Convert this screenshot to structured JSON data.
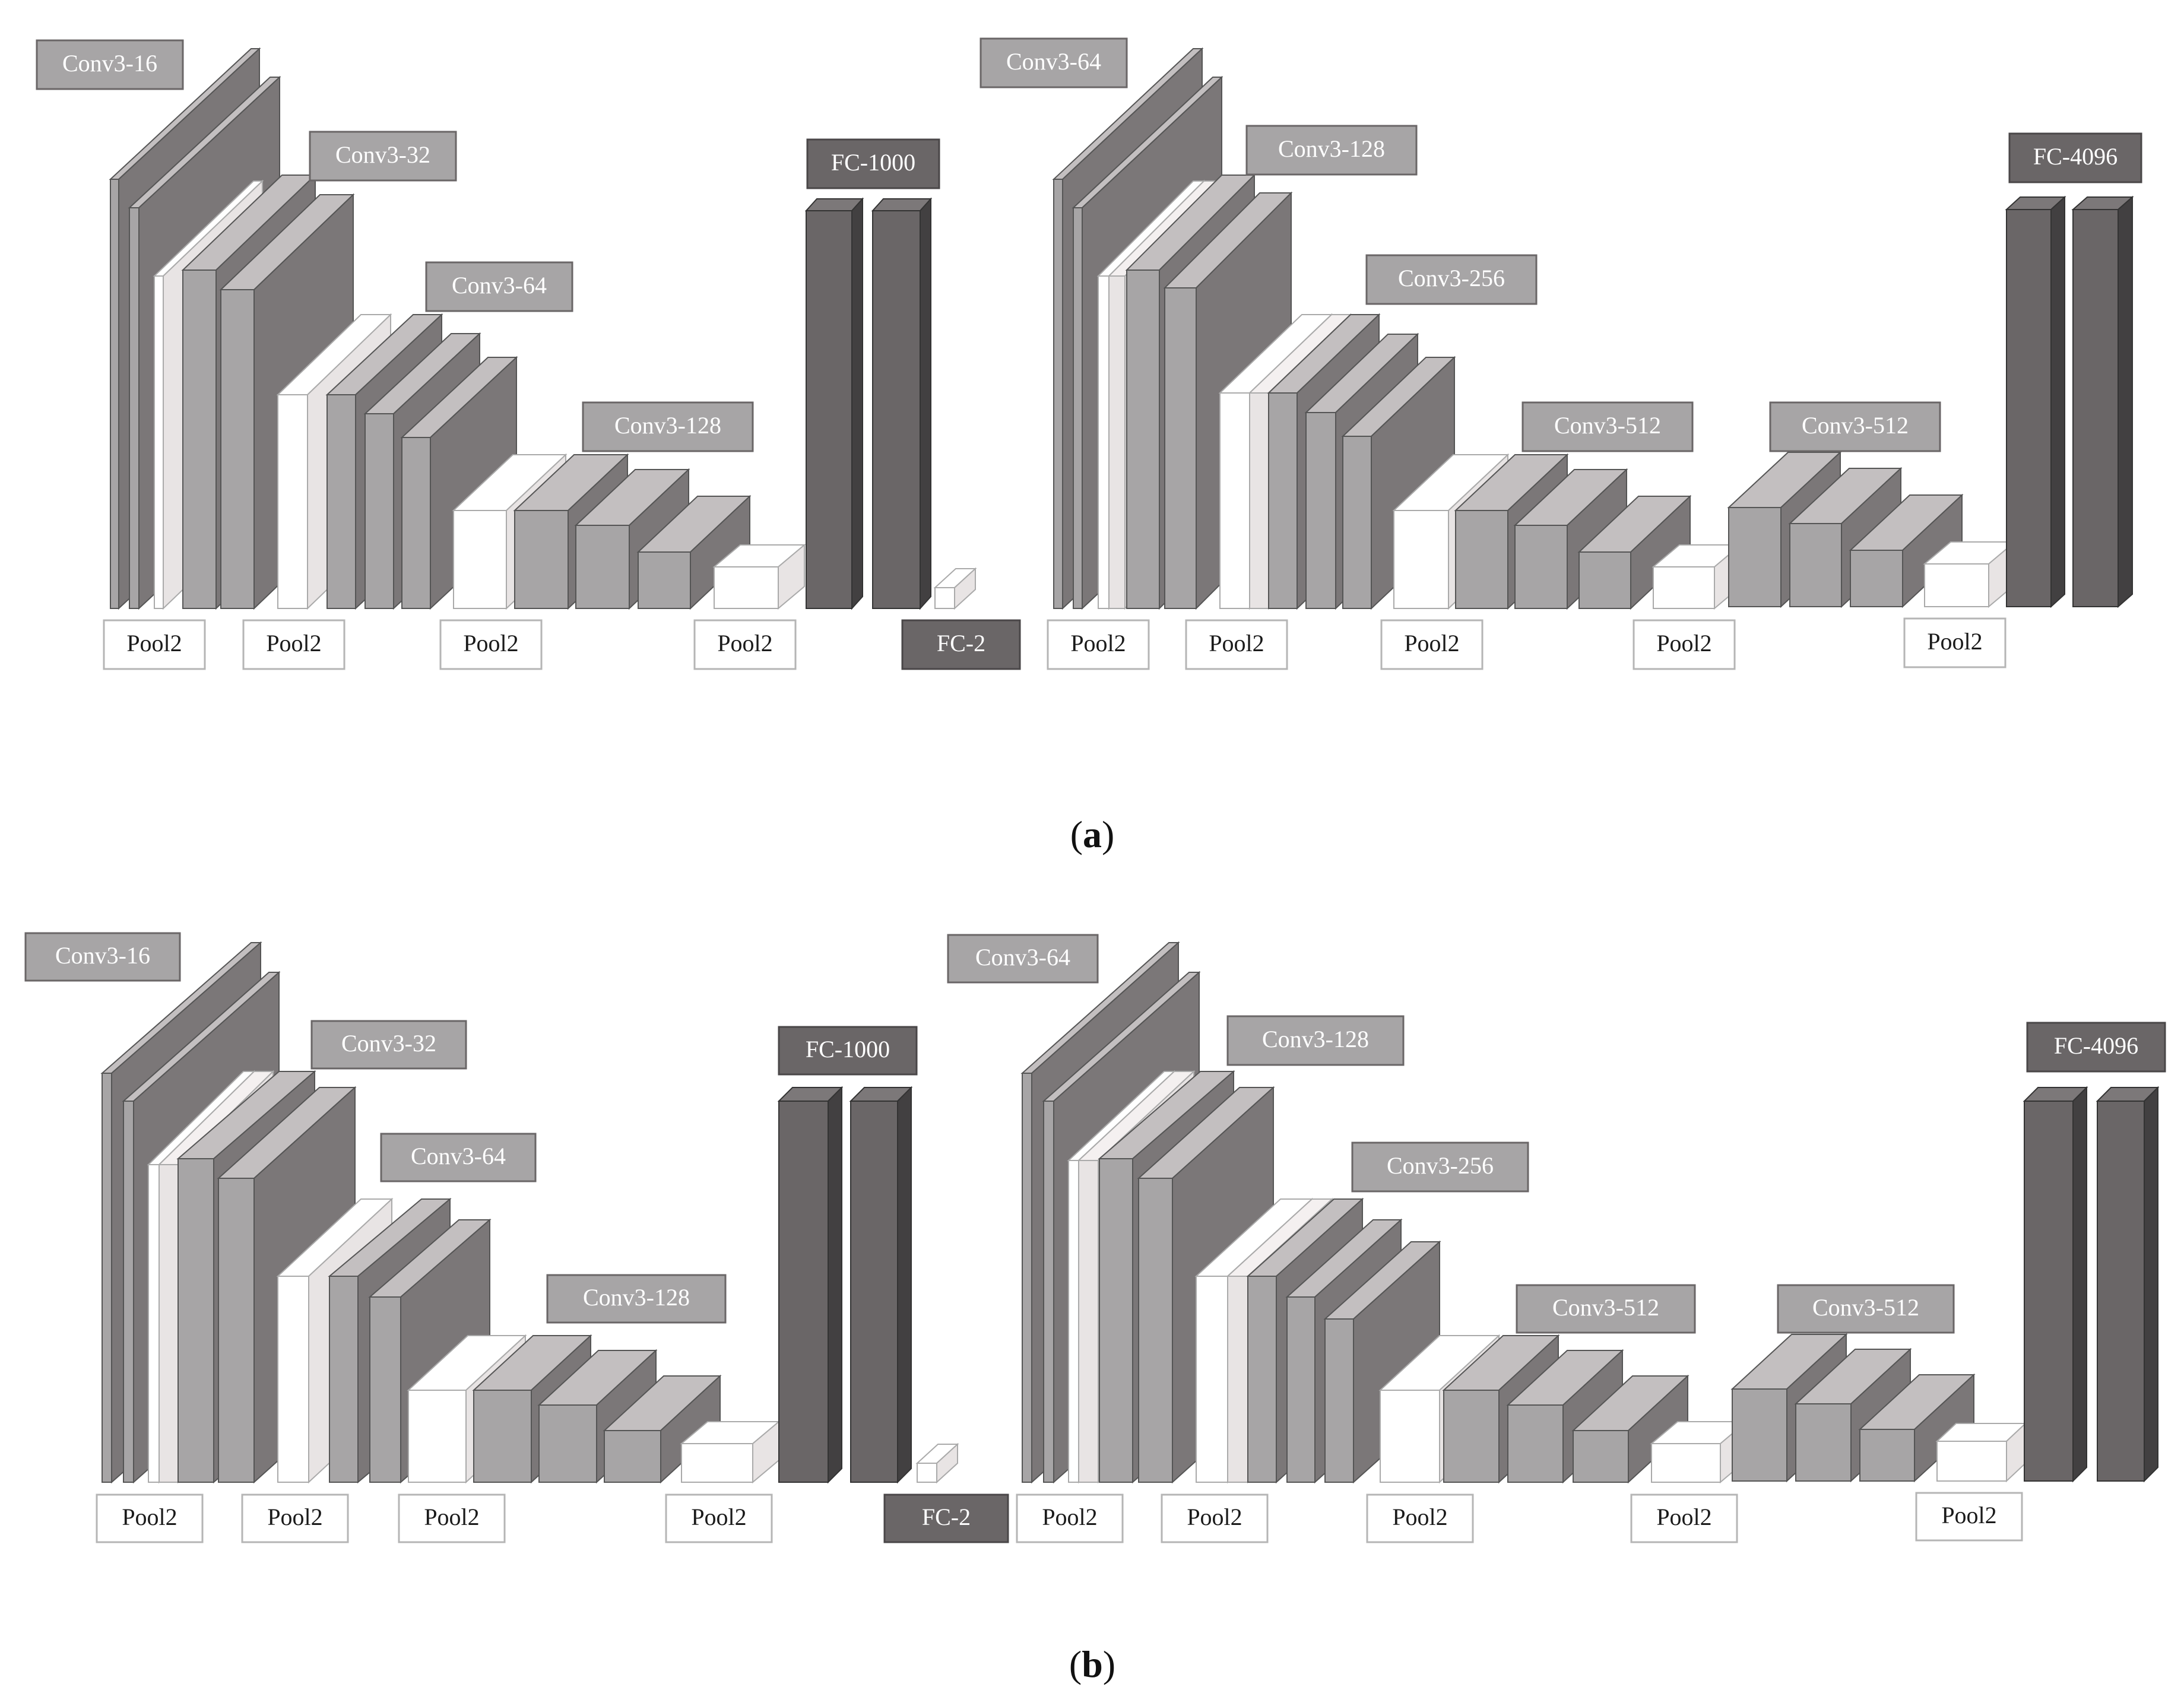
{
  "panels": [
    {
      "caption_open": "(",
      "caption_letter": "a",
      "caption_close": ")",
      "networks": [
        {
          "conv_labels": [
            "Conv3-16",
            "Conv3-32",
            "Conv3-64",
            "Conv3-128"
          ],
          "fc_label": "FC-1000",
          "pool_labels": [
            "Pool2",
            "Pool2",
            "Pool2",
            "Pool2"
          ],
          "output_label": "FC-2"
        },
        {
          "conv_labels": [
            "Conv3-64",
            "Conv3-128",
            "Conv3-256",
            "Conv3-512",
            "Conv3-512"
          ],
          "fc_label": "FC-4096",
          "pool_labels": [
            "Pool2",
            "Pool2",
            "Pool2",
            "Pool2",
            "Pool2"
          ]
        }
      ]
    },
    {
      "caption_open": "(",
      "caption_letter": "b",
      "caption_close": ")",
      "networks": [
        {
          "conv_labels": [
            "Conv3-16",
            "Conv3-32",
            "Conv3-64",
            "Conv3-128"
          ],
          "fc_label": "FC-1000",
          "pool_labels": [
            "Pool2",
            "Pool2",
            "Pool2",
            "Pool2"
          ],
          "output_label": "FC-2"
        },
        {
          "conv_labels": [
            "Conv3-64",
            "Conv3-128",
            "Conv3-256",
            "Conv3-512",
            "Conv3-512"
          ],
          "fc_label": "FC-4096",
          "pool_labels": [
            "Pool2",
            "Pool2",
            "Pool2",
            "Pool2",
            "Pool2"
          ]
        }
      ]
    }
  ],
  "colors": {
    "conv_front": "#a7a5a6",
    "conv_side": "#7b7778",
    "conv_top": "#c3bfc0",
    "pool_front": "#ffffff",
    "pool_side": "#e8e4e4",
    "fc_front": "#6a6667",
    "fc_side": "#424041",
    "fc_top": "#7c7879",
    "label_fill": "#a7a5a6",
    "label_dark_fill": "#6a6667",
    "label_text": "#ffffff",
    "pool_label_text": "#1a1a1a"
  }
}
